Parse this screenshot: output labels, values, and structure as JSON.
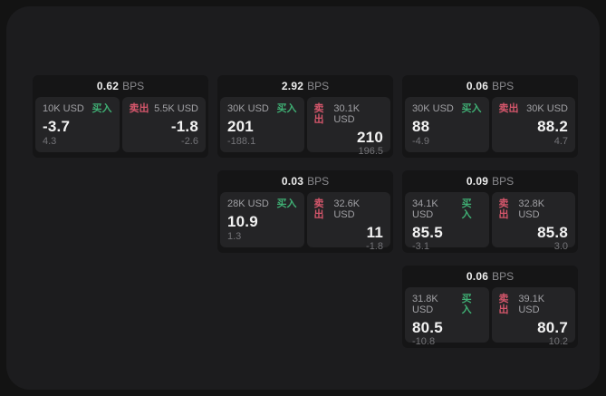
{
  "labels": {
    "bps_suffix": "BPS",
    "buy": "买入",
    "sell": "卖出"
  },
  "colors": {
    "outer_background": "#131313",
    "panel_background": "#1c1c1e",
    "card_background": "#151516",
    "subpanel_background": "#242426",
    "buy_green": "#3fae73",
    "sell_red": "#d5566b"
  },
  "cards": [
    {
      "row": 1,
      "col": 1,
      "bps": "0.62",
      "buy": {
        "amount": "10K USD",
        "price": "-3.7",
        "delta": "4.3"
      },
      "sell": {
        "amount": "5.5K USD",
        "price": "-1.8",
        "delta": "-2.6"
      }
    },
    {
      "row": 1,
      "col": 2,
      "bps": "2.92",
      "buy": {
        "amount": "30K USD",
        "price": "201",
        "delta": "-188.1"
      },
      "sell": {
        "amount": "30.1K USD",
        "price": "210",
        "delta": "196.5"
      }
    },
    {
      "row": 1,
      "col": 3,
      "bps": "0.06",
      "buy": {
        "amount": "30K USD",
        "price": "88",
        "delta": "-4.9"
      },
      "sell": {
        "amount": "30K USD",
        "price": "88.2",
        "delta": "4.7"
      }
    },
    {
      "row": 2,
      "col": 2,
      "bps": "0.03",
      "buy": {
        "amount": "28K USD",
        "price": "10.9",
        "delta": "1.3"
      },
      "sell": {
        "amount": "32.6K USD",
        "price": "11",
        "delta": "-1.8"
      }
    },
    {
      "row": 2,
      "col": 3,
      "bps": "0.09",
      "buy": {
        "amount": "34.1K USD",
        "price": "85.5",
        "delta": "-3.1"
      },
      "sell": {
        "amount": "32.8K USD",
        "price": "85.8",
        "delta": "3.0"
      }
    },
    {
      "row": 3,
      "col": 3,
      "bps": "0.06",
      "buy": {
        "amount": "31.8K USD",
        "price": "80.5",
        "delta": "-10.8"
      },
      "sell": {
        "amount": "39.1K USD",
        "price": "80.7",
        "delta": "10.2"
      }
    }
  ]
}
